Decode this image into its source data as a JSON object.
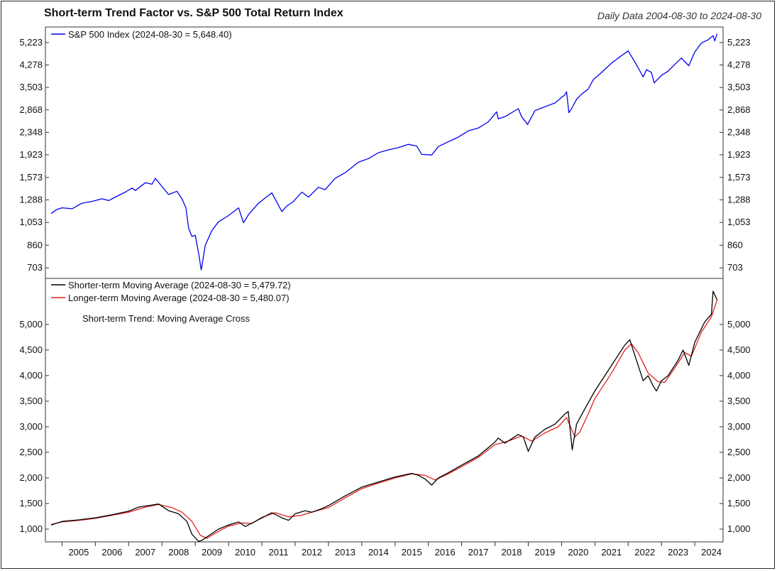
{
  "title": "Short-term Trend Factor vs. S&P 500 Total Return Index",
  "subtitle": "Daily Data 2004-08-30 to 2024-08-30",
  "chart_data": [
    {
      "type": "line",
      "scale": "log",
      "ylim": [
        640,
        6000
      ],
      "y_ticks": [
        703,
        860,
        1053,
        1288,
        1573,
        1923,
        2348,
        2868,
        3503,
        4278,
        5223
      ],
      "y_tick_labels": [
        "703",
        "860",
        "1,053",
        "1,288",
        "1,573",
        "1,923",
        "2,348",
        "2,868",
        "3,503",
        "4,278",
        "5,223"
      ],
      "legend": [
        "S&P 500 Index (2024-08-30 = 5,648.40)"
      ],
      "legend_position": "top-left",
      "series": [
        {
          "name": "S&P 500 Index",
          "color": "#0000ee",
          "x": [
            2004.67,
            2004.83,
            2005.0,
            2005.3,
            2005.6,
            2005.9,
            2006.2,
            2006.4,
            2006.6,
            2006.9,
            2007.1,
            2007.2,
            2007.5,
            2007.7,
            2007.8,
            2008.0,
            2008.2,
            2008.45,
            2008.6,
            2008.72,
            2008.8,
            2008.9,
            2009.0,
            2009.1,
            2009.18,
            2009.3,
            2009.5,
            2009.7,
            2010.0,
            2010.3,
            2010.45,
            2010.6,
            2010.9,
            2011.1,
            2011.3,
            2011.6,
            2011.75,
            2011.95,
            2012.2,
            2012.4,
            2012.7,
            2012.9,
            2013.2,
            2013.5,
            2013.9,
            2014.2,
            2014.5,
            2014.8,
            2015.1,
            2015.4,
            2015.65,
            2015.8,
            2016.1,
            2016.3,
            2016.6,
            2016.9,
            2017.2,
            2017.5,
            2017.8,
            2018.05,
            2018.1,
            2018.3,
            2018.7,
            2018.8,
            2018.98,
            2019.2,
            2019.5,
            2019.8,
            2020.1,
            2020.15,
            2020.22,
            2020.3,
            2020.45,
            2020.6,
            2020.8,
            2020.95,
            2021.2,
            2021.5,
            2021.8,
            2022.0,
            2022.2,
            2022.45,
            2022.55,
            2022.7,
            2022.78,
            2023.0,
            2023.2,
            2023.4,
            2023.6,
            2023.82,
            2024.0,
            2024.2,
            2024.4,
            2024.55,
            2024.6,
            2024.67
          ],
          "values": [
            1140,
            1180,
            1200,
            1190,
            1250,
            1270,
            1300,
            1280,
            1320,
            1380,
            1430,
            1400,
            1500,
            1480,
            1560,
            1450,
            1350,
            1390,
            1300,
            1200,
            1000,
            930,
            940,
            800,
            690,
            860,
            980,
            1060,
            1120,
            1200,
            1050,
            1130,
            1250,
            1310,
            1370,
            1160,
            1220,
            1270,
            1380,
            1320,
            1440,
            1410,
            1560,
            1640,
            1800,
            1860,
            1960,
            2010,
            2050,
            2110,
            2080,
            1930,
            1920,
            2070,
            2160,
            2250,
            2380,
            2440,
            2580,
            2820,
            2650,
            2700,
            2900,
            2700,
            2520,
            2850,
            2950,
            3050,
            3280,
            3370,
            2800,
            2900,
            3150,
            3300,
            3450,
            3750,
            4000,
            4350,
            4650,
            4850,
            4400,
            3850,
            4100,
            4000,
            3650,
            3900,
            4050,
            4300,
            4550,
            4250,
            4800,
            5200,
            5350,
            5550,
            5300,
            5648
          ]
        }
      ]
    },
    {
      "type": "line",
      "ylim": [
        750,
        5900
      ],
      "y_ticks": [
        1000,
        1500,
        2000,
        2500,
        3000,
        3500,
        4000,
        4500,
        5000
      ],
      "y_tick_labels": [
        "1,000",
        "1,500",
        "2,000",
        "2,500",
        "3,000",
        "3,500",
        "4,000",
        "4,500",
        "5,000"
      ],
      "legend": [
        "Shorter-term Moving Average (2024-08-30 = 5,479.72)",
        "Longer-term Moving Average (2024-08-30 = 5,480.07)"
      ],
      "legend_position": "top-left",
      "annotation": "Short-term Trend: Moving Average Cross",
      "x_tick_labels": [
        "2005",
        "2006",
        "2007",
        "2008",
        "2009",
        "2010",
        "2011",
        "2012",
        "2013",
        "2014",
        "2015",
        "2016",
        "2017",
        "2018",
        "2019",
        "2020",
        "2021",
        "2022",
        "2023",
        "2024"
      ],
      "x_ticks": [
        2005,
        2006,
        2007,
        2008,
        2009,
        2010,
        2011,
        2012,
        2013,
        2014,
        2015,
        2016,
        2017,
        2018,
        2019,
        2020,
        2021,
        2022,
        2023,
        2024
      ],
      "xlim": [
        2004.5,
        2024.85
      ],
      "series": [
        {
          "name": "Shorter-term Moving Average",
          "color": "#000000",
          "x": [
            2004.67,
            2005.0,
            2005.5,
            2006.0,
            2006.5,
            2007.0,
            2007.3,
            2007.6,
            2007.9,
            2008.2,
            2008.5,
            2008.75,
            2008.9,
            2009.1,
            2009.2,
            2009.4,
            2009.7,
            2010.0,
            2010.3,
            2010.5,
            2010.8,
            2011.3,
            2011.6,
            2011.8,
            2012.0,
            2012.3,
            2012.5,
            2012.8,
            2013.0,
            2013.5,
            2014.0,
            2014.5,
            2015.0,
            2015.5,
            2015.7,
            2015.9,
            2016.1,
            2016.3,
            2016.6,
            2017.0,
            2017.5,
            2018.0,
            2018.1,
            2018.3,
            2018.7,
            2018.85,
            2019.0,
            2019.2,
            2019.5,
            2019.8,
            2020.1,
            2020.2,
            2020.32,
            2020.45,
            2020.7,
            2021.0,
            2021.5,
            2021.9,
            2022.05,
            2022.2,
            2022.45,
            2022.6,
            2022.75,
            2022.85,
            2023.0,
            2023.2,
            2023.5,
            2023.65,
            2023.82,
            2024.0,
            2024.3,
            2024.5,
            2024.55,
            2024.67
          ],
          "values": [
            1080,
            1150,
            1180,
            1220,
            1280,
            1350,
            1430,
            1460,
            1490,
            1360,
            1300,
            1150,
            900,
            760,
            780,
            870,
            1000,
            1080,
            1140,
            1050,
            1150,
            1320,
            1220,
            1170,
            1300,
            1360,
            1330,
            1400,
            1460,
            1650,
            1820,
            1920,
            2020,
            2090,
            2050,
            1980,
            1860,
            2000,
            2100,
            2250,
            2430,
            2700,
            2780,
            2680,
            2850,
            2800,
            2520,
            2800,
            2950,
            3050,
            3250,
            3300,
            2550,
            3050,
            3350,
            3700,
            4200,
            4600,
            4700,
            4400,
            3900,
            4000,
            3800,
            3700,
            3900,
            4000,
            4300,
            4500,
            4200,
            4650,
            5050,
            5200,
            5650,
            5480
          ]
        },
        {
          "name": "Longer-term Moving Average",
          "color": "#e02020",
          "x": [
            2004.67,
            2005.0,
            2005.5,
            2006.0,
            2006.5,
            2007.0,
            2007.5,
            2007.9,
            2008.3,
            2008.6,
            2008.9,
            2009.15,
            2009.35,
            2009.6,
            2010.0,
            2010.4,
            2010.7,
            2011.0,
            2011.4,
            2011.8,
            2012.2,
            2012.6,
            2013.0,
            2013.5,
            2014.0,
            2014.5,
            2015.0,
            2015.5,
            2015.9,
            2016.2,
            2016.6,
            2017.0,
            2017.5,
            2018.0,
            2018.4,
            2018.8,
            2019.1,
            2019.5,
            2019.9,
            2020.15,
            2020.4,
            2020.55,
            2020.8,
            2021.0,
            2021.5,
            2021.9,
            2022.1,
            2022.3,
            2022.6,
            2022.9,
            2023.1,
            2023.4,
            2023.7,
            2023.9,
            2024.2,
            2024.5,
            2024.67
          ],
          "values": [
            1090,
            1140,
            1170,
            1210,
            1270,
            1330,
            1430,
            1480,
            1420,
            1330,
            1150,
            880,
            820,
            920,
            1060,
            1120,
            1110,
            1230,
            1320,
            1240,
            1270,
            1350,
            1420,
            1610,
            1790,
            1900,
            2000,
            2080,
            2050,
            1960,
            2080,
            2220,
            2400,
            2650,
            2720,
            2820,
            2720,
            2880,
            3000,
            3180,
            2800,
            2900,
            3250,
            3550,
            4050,
            4500,
            4620,
            4450,
            4050,
            3880,
            3870,
            4150,
            4450,
            4380,
            4850,
            5150,
            5480
          ]
        }
      ]
    }
  ]
}
